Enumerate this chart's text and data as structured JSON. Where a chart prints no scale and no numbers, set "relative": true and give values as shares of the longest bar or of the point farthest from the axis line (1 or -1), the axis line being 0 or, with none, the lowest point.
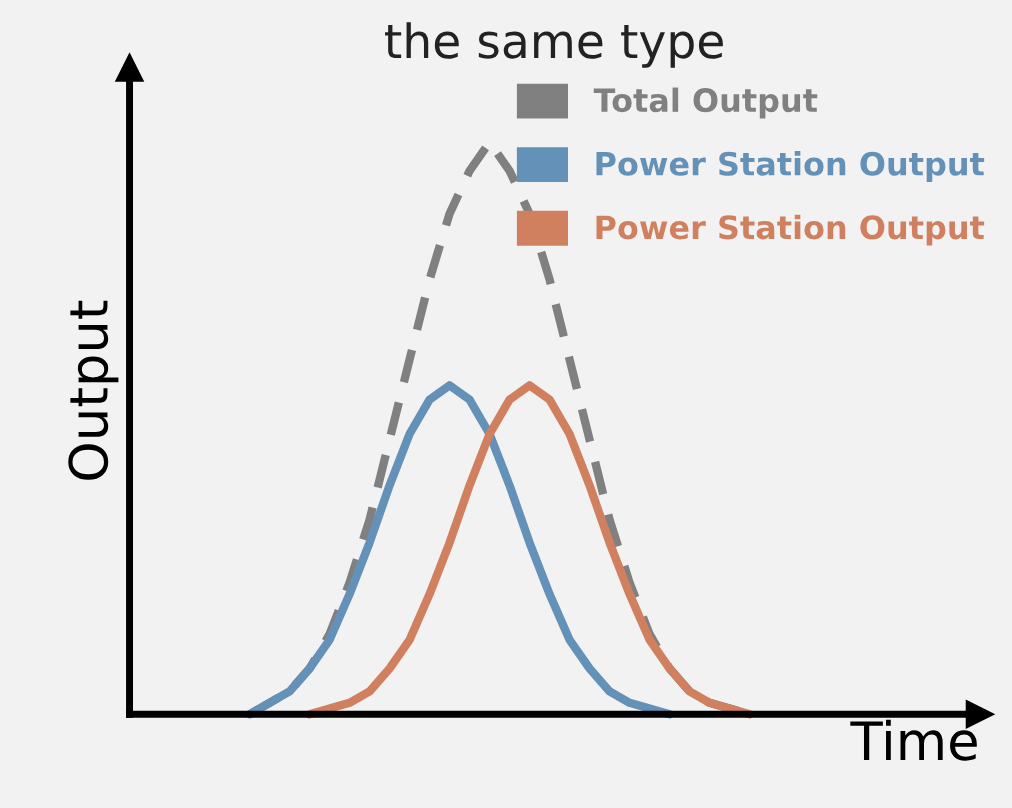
{
  "chart_data": {
    "type": "line",
    "title": "the same type",
    "xlabel": "Time",
    "ylabel": "Output",
    "relative": true,
    "legend": "top right",
    "categories": [
      null,
      null,
      null,
      null,
      null,
      null,
      null,
      null,
      null,
      null,
      null,
      null,
      null,
      null,
      null,
      null,
      null,
      null,
      null,
      null,
      null,
      null,
      null,
      null,
      null,
      null
    ],
    "series": [
      {
        "name": "Total Output",
        "color": "#808080",
        "line_style": "dashed",
        "values": [
          0,
          0.02,
          0.04,
          0.08,
          0.14,
          0.23,
          0.34,
          0.48,
          0.62,
          0.76,
          0.875,
          0.95,
          1.0,
          0.95,
          0.875,
          0.76,
          0.62,
          0.48,
          0.34,
          0.23,
          0.14,
          0.08,
          0.04,
          0.02,
          0.01,
          0
        ]
      },
      {
        "name": "Power Station Output",
        "color": "#6391b8",
        "line_style": "solid",
        "values": [
          0,
          0.02,
          0.04,
          0.08,
          0.13,
          0.21,
          0.3,
          0.4,
          0.49,
          0.55,
          0.575,
          0.55,
          0.49,
          0.4,
          0.3,
          0.21,
          0.13,
          0.08,
          0.04,
          0.02,
          0.01,
          0,
          null,
          null,
          null,
          null
        ]
      },
      {
        "name": "Power Station Output",
        "color": "#d0805e",
        "line_style": "solid",
        "values": [
          null,
          null,
          null,
          0,
          0.01,
          0.02,
          0.04,
          0.08,
          0.13,
          0.21,
          0.3,
          0.4,
          0.49,
          0.55,
          0.575,
          0.55,
          0.49,
          0.4,
          0.3,
          0.21,
          0.13,
          0.08,
          0.04,
          0.02,
          0.01,
          0
        ]
      }
    ]
  }
}
